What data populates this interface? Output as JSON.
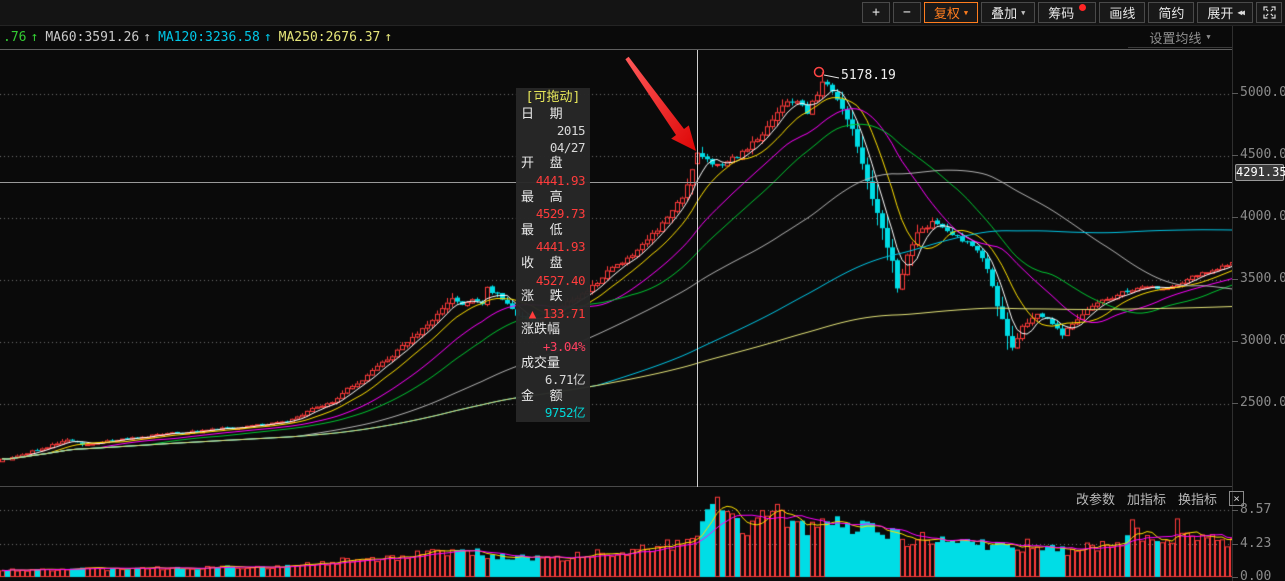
{
  "toolbar": {
    "accent_color": "#ff7d1e",
    "badge_color": "#ff2525",
    "buttons": [
      {
        "name": "zoom-in-button",
        "label": "+"
      },
      {
        "name": "zoom-out-button",
        "label": "−"
      },
      {
        "name": "adjust-price-button",
        "label": "复权",
        "caret": true,
        "accent": true
      },
      {
        "name": "overlay-button",
        "label": "叠加",
        "caret": true
      },
      {
        "name": "chips-button",
        "label": "筹码",
        "dot": true
      },
      {
        "name": "draw-line-button",
        "label": "画线"
      },
      {
        "name": "simple-mode-button",
        "label": "简约"
      },
      {
        "name": "expand-button",
        "label": "展开",
        "rewind": "◀◀"
      },
      {
        "name": "fullscreen-button",
        "icon": "expand"
      }
    ]
  },
  "legend": {
    "arrow_glyph": "↑",
    "settings_label": "设置均线",
    "items": [
      {
        "text": ".76",
        "color": "#33cc33"
      },
      {
        "text": "MA60:3591.26",
        "color": "#c9c9c9"
      },
      {
        "text": "MA120:3236.58",
        "color": "#00c8e8"
      },
      {
        "text": "MA250:2676.37",
        "color": "#e6e67a"
      }
    ]
  },
  "tooltip": {
    "title": "[可拖动]",
    "rows": [
      {
        "label": "日  期",
        "values": [
          {
            "text": "2015",
            "color": "#d8d8d8"
          },
          {
            "text": "04/27",
            "color": "#d8d8d8"
          }
        ]
      },
      {
        "label": "开  盘",
        "values": [
          {
            "text": "4441.93",
            "color": "#ff3c3c"
          }
        ]
      },
      {
        "label": "最  高",
        "values": [
          {
            "text": "4529.73",
            "color": "#ff3c3c"
          }
        ]
      },
      {
        "label": "最  低",
        "values": [
          {
            "text": "4441.93",
            "color": "#ff3c3c"
          }
        ]
      },
      {
        "label": "收  盘",
        "values": [
          {
            "text": "4527.40",
            "color": "#ff3c3c"
          }
        ]
      },
      {
        "label": "涨  跌",
        "values": [
          {
            "text": "▲ 133.71",
            "color": "#ff3c3c"
          }
        ]
      },
      {
        "label": "涨跌幅",
        "values": [
          {
            "text": "+3.04%",
            "color": "#ff4060"
          }
        ]
      },
      {
        "label": "成交量",
        "values": [
          {
            "text": "6.71亿",
            "color": "#d8d8d8"
          }
        ]
      },
      {
        "label": "金  额",
        "values": [
          {
            "text": "9752亿",
            "color": "#00d8d8"
          }
        ]
      }
    ]
  },
  "volume_links": {
    "close_glyph": "×",
    "items": [
      {
        "name": "change-params-link",
        "label": "改参数"
      },
      {
        "name": "add-indicator-link",
        "label": "加指标"
      },
      {
        "name": "switch-indicator-link",
        "label": "换指标"
      }
    ]
  },
  "chart_data": {
    "type": "candlestick_with_volume",
    "candle_count": 247,
    "crosshair_index": 139,
    "peak_index": 164,
    "crosshair_date": "2015/04/27",
    "selected_candle": {
      "date": "2015/04/27",
      "open": 4441.93,
      "high": 4529.73,
      "low": 4441.93,
      "close": 4527.4,
      "change": 133.71,
      "change_pct": "+3.04%",
      "volume": "6.71亿",
      "amount": "9752亿"
    },
    "peak_annotation": {
      "text": "5178.19",
      "price": 5178.19
    },
    "price_axis": {
      "crosshair_label": "4291.35",
      "crosshair_value": 4291.35,
      "ticks": [
        {
          "label": "5000.00",
          "value": 5000
        },
        {
          "label": "4500.00",
          "value": 4500
        },
        {
          "label": "4000.00",
          "value": 4000
        },
        {
          "label": "3500.00",
          "value": 3500
        },
        {
          "label": "3000.00",
          "value": 3000
        },
        {
          "label": "2500.00",
          "value": 2500
        }
      ]
    },
    "volume_axis": {
      "ticks": [
        {
          "label": "8.57",
          "value": 8.57
        },
        {
          "label": "4.23",
          "value": 4.23
        },
        {
          "label": "0.00",
          "value": 0
        }
      ]
    },
    "ma_lines": [
      {
        "name": "MA5",
        "window": 5,
        "color": "#ffffff"
      },
      {
        "name": "MA10",
        "window": 10,
        "color": "#ffe100"
      },
      {
        "name": "MA20",
        "window": 20,
        "color": "#ff00ff"
      },
      {
        "name": "MA30",
        "window": 30,
        "color": "#00c832"
      },
      {
        "name": "MA60",
        "window": 60,
        "color": "#b4b4b4"
      },
      {
        "name": "MA120",
        "window": 120,
        "color": "#00c8e8"
      },
      {
        "name": "MA250",
        "window": 250,
        "color": "#e6e67a"
      }
    ],
    "volume_ma_lines": [
      {
        "name": "MAVOL5",
        "window": 5,
        "color": "#ffe100"
      },
      {
        "name": "MAVOL10",
        "window": 10,
        "color": "#ff00ff"
      }
    ],
    "colors": {
      "up": "#ff3a3a",
      "down": "#00dde6",
      "background": "#0a0a0a",
      "grid": "#707070",
      "axis_text": "#8a8a8a",
      "crosshair": "#cfcfcf",
      "arrow_annotation": "#e81212"
    },
    "close_anchors": [
      [
        0,
        2050
      ],
      [
        8,
        2140
      ],
      [
        13,
        2210
      ],
      [
        16,
        2170
      ],
      [
        22,
        2210
      ],
      [
        30,
        2250
      ],
      [
        40,
        2285
      ],
      [
        48,
        2315
      ],
      [
        56,
        2350
      ],
      [
        60,
        2420
      ],
      [
        63,
        2480
      ],
      [
        66,
        2520
      ],
      [
        69,
        2620
      ],
      [
        72,
        2700
      ],
      [
        75,
        2810
      ],
      [
        78,
        2890
      ],
      [
        81,
        3000
      ],
      [
        84,
        3120
      ],
      [
        86,
        3180
      ],
      [
        88,
        3280
      ],
      [
        90,
        3340
      ],
      [
        92,
        3300
      ],
      [
        94,
        3360
      ],
      [
        96,
        3310
      ],
      [
        97,
        3430
      ],
      [
        99,
        3380
      ],
      [
        101,
        3300
      ],
      [
        103,
        3220
      ],
      [
        106,
        3160
      ],
      [
        109,
        3220
      ],
      [
        112,
        3300
      ],
      [
        115,
        3360
      ],
      [
        118,
        3450
      ],
      [
        121,
        3570
      ],
      [
        124,
        3650
      ],
      [
        127,
        3740
      ],
      [
        130,
        3870
      ],
      [
        133,
        4000
      ],
      [
        136,
        4180
      ],
      [
        138,
        4400
      ],
      [
        139,
        4527
      ],
      [
        141,
        4480
      ],
      [
        143,
        4420
      ],
      [
        145,
        4460
      ],
      [
        147,
        4500
      ],
      [
        149,
        4560
      ],
      [
        151,
        4640
      ],
      [
        153,
        4740
      ],
      [
        155,
        4850
      ],
      [
        157,
        4960
      ],
      [
        159,
        4920
      ],
      [
        161,
        4860
      ],
      [
        163,
        5000
      ],
      [
        164,
        5100
      ],
      [
        166,
        5020
      ],
      [
        168,
        4900
      ],
      [
        170,
        4700
      ],
      [
        172,
        4450
      ],
      [
        174,
        4150
      ],
      [
        176,
        3900
      ],
      [
        178,
        3650
      ],
      [
        179,
        3420
      ],
      [
        181,
        3700
      ],
      [
        183,
        3880
      ],
      [
        186,
        3960
      ],
      [
        189,
        3890
      ],
      [
        192,
        3820
      ],
      [
        195,
        3740
      ],
      [
        197,
        3580
      ],
      [
        199,
        3300
      ],
      [
        201,
        3050
      ],
      [
        202,
        2950
      ],
      [
        204,
        3120
      ],
      [
        207,
        3240
      ],
      [
        210,
        3150
      ],
      [
        212,
        3060
      ],
      [
        214,
        3150
      ],
      [
        217,
        3260
      ],
      [
        220,
        3330
      ],
      [
        224,
        3400
      ],
      [
        228,
        3450
      ],
      [
        232,
        3420
      ],
      [
        236,
        3480
      ],
      [
        240,
        3560
      ],
      [
        243,
        3600
      ],
      [
        246,
        3630
      ]
    ],
    "volume_anchors": [
      [
        0,
        0.9
      ],
      [
        20,
        1.05
      ],
      [
        40,
        1.2
      ],
      [
        58,
        1.4
      ],
      [
        64,
        1.8
      ],
      [
        72,
        2.3
      ],
      [
        80,
        2.6
      ],
      [
        84,
        3.3
      ],
      [
        88,
        2.8
      ],
      [
        92,
        3.6
      ],
      [
        97,
        2.9
      ],
      [
        103,
        2.4
      ],
      [
        109,
        2.3
      ],
      [
        115,
        2.7
      ],
      [
        121,
        3.1
      ],
      [
        127,
        3.5
      ],
      [
        132,
        3.9
      ],
      [
        136,
        4.5
      ],
      [
        139,
        5.2
      ],
      [
        141,
        7.8
      ],
      [
        143,
        8.6
      ],
      [
        146,
        6.9
      ],
      [
        149,
        6.2
      ],
      [
        152,
        7.4
      ],
      [
        155,
        8.3
      ],
      [
        158,
        7.0
      ],
      [
        161,
        6.3
      ],
      [
        164,
        7.7
      ],
      [
        167,
        6.5
      ],
      [
        170,
        5.7
      ],
      [
        173,
        6.9
      ],
      [
        176,
        5.9
      ],
      [
        179,
        5.1
      ],
      [
        182,
        4.5
      ],
      [
        185,
        5.3
      ],
      [
        188,
        4.7
      ],
      [
        191,
        4.3
      ],
      [
        194,
        4.9
      ],
      [
        197,
        4.1
      ],
      [
        200,
        3.7
      ],
      [
        203,
        3.3
      ],
      [
        206,
        4.5
      ],
      [
        209,
        3.9
      ],
      [
        212,
        3.5
      ],
      [
        215,
        3.1
      ],
      [
        218,
        4.3
      ],
      [
        221,
        3.7
      ],
      [
        224,
        4.6
      ],
      [
        226,
        7.8
      ],
      [
        228,
        5.2
      ],
      [
        231,
        4.4
      ],
      [
        234,
        4.8
      ],
      [
        235,
        6.9
      ],
      [
        238,
        5.0
      ],
      [
        241,
        4.6
      ],
      [
        244,
        4.9
      ],
      [
        246,
        4.6
      ]
    ]
  }
}
